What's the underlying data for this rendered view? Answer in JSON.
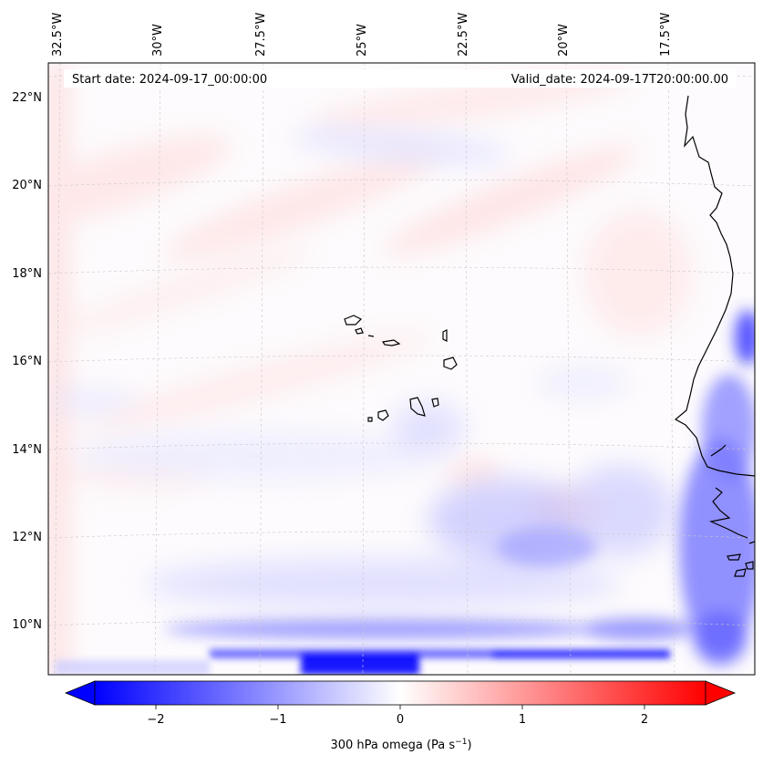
{
  "header": {
    "start_date": "Start date: 2024-09-17_00:00:00",
    "valid_date": "Valid_date: 2024-09-17T20:00:00.00"
  },
  "axes": {
    "lon_labels": [
      "32.5°W",
      "30°W",
      "27.5°W",
      "25°W",
      "22.5°W",
      "20°W",
      "17.5°W"
    ],
    "lat_labels": [
      "22°N",
      "20°N",
      "18°N",
      "16°N",
      "14°N",
      "12°N",
      "10°N"
    ]
  },
  "colorbar": {
    "label": "300 hPa omega (Pa s",
    "label_sup": "−1",
    "label_close": ")",
    "ticks": [
      "−2",
      "−1",
      "0",
      "1",
      "2"
    ],
    "tick_values": [
      -2,
      -1,
      0,
      1,
      2
    ],
    "range": [
      -2.5,
      2.5
    ],
    "colormap": "bwr",
    "extend": "both"
  },
  "colors": {
    "negative": "#0000ff",
    "neutral": "#ffffff",
    "positive": "#ff0000",
    "coastline": "#000000",
    "gridline": "#c8c8c8"
  },
  "map": {
    "projection": "Lambert conformal",
    "field": "300 hPa omega",
    "lon_range": [
      -33,
      -15.8
    ],
    "lat_range": [
      8.8,
      22.8
    ],
    "gridlines": true
  }
}
